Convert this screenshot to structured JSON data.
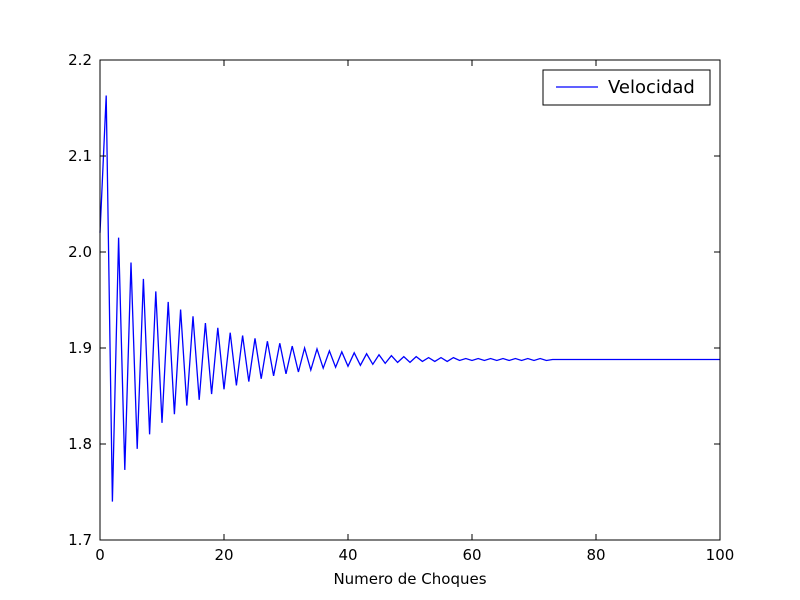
{
  "chart_data": {
    "type": "line",
    "title": "",
    "xlabel": "Numero de Choques",
    "ylabel": "",
    "xlim": [
      0,
      100
    ],
    "ylim": [
      1.7,
      2.2
    ],
    "xticks": [
      0,
      20,
      40,
      60,
      80,
      100
    ],
    "yticks": [
      1.7,
      1.8,
      1.9,
      2.0,
      2.1,
      2.2
    ],
    "xtick_labels": [
      "0",
      "20",
      "40",
      "60",
      "80",
      "100"
    ],
    "ytick_labels": [
      "1.7",
      "1.8",
      "1.9",
      "2.0",
      "2.1",
      "2.2"
    ],
    "grid": false,
    "legend_position": "top-right",
    "series": [
      {
        "name": "Velocidad",
        "color": "#0000ff",
        "x": [
          0,
          1,
          2,
          3,
          4,
          5,
          6,
          7,
          8,
          9,
          10,
          11,
          12,
          13,
          14,
          15,
          16,
          17,
          18,
          19,
          20,
          21,
          22,
          23,
          24,
          25,
          26,
          27,
          28,
          29,
          30,
          31,
          32,
          33,
          34,
          35,
          36,
          37,
          38,
          39,
          40,
          41,
          42,
          43,
          44,
          45,
          46,
          47,
          48,
          49,
          50,
          51,
          52,
          53,
          54,
          55,
          56,
          57,
          58,
          59,
          60,
          61,
          62,
          63,
          64,
          65,
          66,
          67,
          68,
          69,
          70,
          71,
          72,
          73,
          74,
          75,
          76,
          77,
          78,
          79,
          80,
          81,
          82,
          83,
          84,
          85,
          86,
          87,
          88,
          89,
          90,
          91,
          92,
          93,
          94,
          95,
          96,
          97,
          98,
          99,
          100
        ],
        "values": [
          2.02,
          2.163,
          1.74,
          2.015,
          1.773,
          1.989,
          1.795,
          1.972,
          1.81,
          1.959,
          1.822,
          1.948,
          1.831,
          1.94,
          1.84,
          1.933,
          1.846,
          1.926,
          1.852,
          1.921,
          1.857,
          1.916,
          1.861,
          1.913,
          1.865,
          1.91,
          1.868,
          1.907,
          1.871,
          1.905,
          1.873,
          1.902,
          1.875,
          1.9,
          1.877,
          1.899,
          1.879,
          1.897,
          1.88,
          1.896,
          1.881,
          1.895,
          1.882,
          1.894,
          1.883,
          1.893,
          1.884,
          1.892,
          1.885,
          1.891,
          1.885,
          1.891,
          1.886,
          1.89,
          1.886,
          1.89,
          1.886,
          1.89,
          1.887,
          1.889,
          1.887,
          1.889,
          1.887,
          1.889,
          1.887,
          1.889,
          1.887,
          1.889,
          1.887,
          1.889,
          1.887,
          1.889,
          1.887,
          1.888,
          1.888,
          1.888,
          1.888,
          1.888,
          1.888,
          1.888,
          1.888,
          1.888,
          1.888,
          1.888,
          1.888,
          1.888,
          1.888,
          1.888,
          1.888,
          1.888,
          1.888,
          1.888,
          1.888,
          1.888,
          1.888,
          1.888,
          1.888,
          1.888,
          1.888,
          1.888,
          1.888
        ]
      }
    ]
  }
}
